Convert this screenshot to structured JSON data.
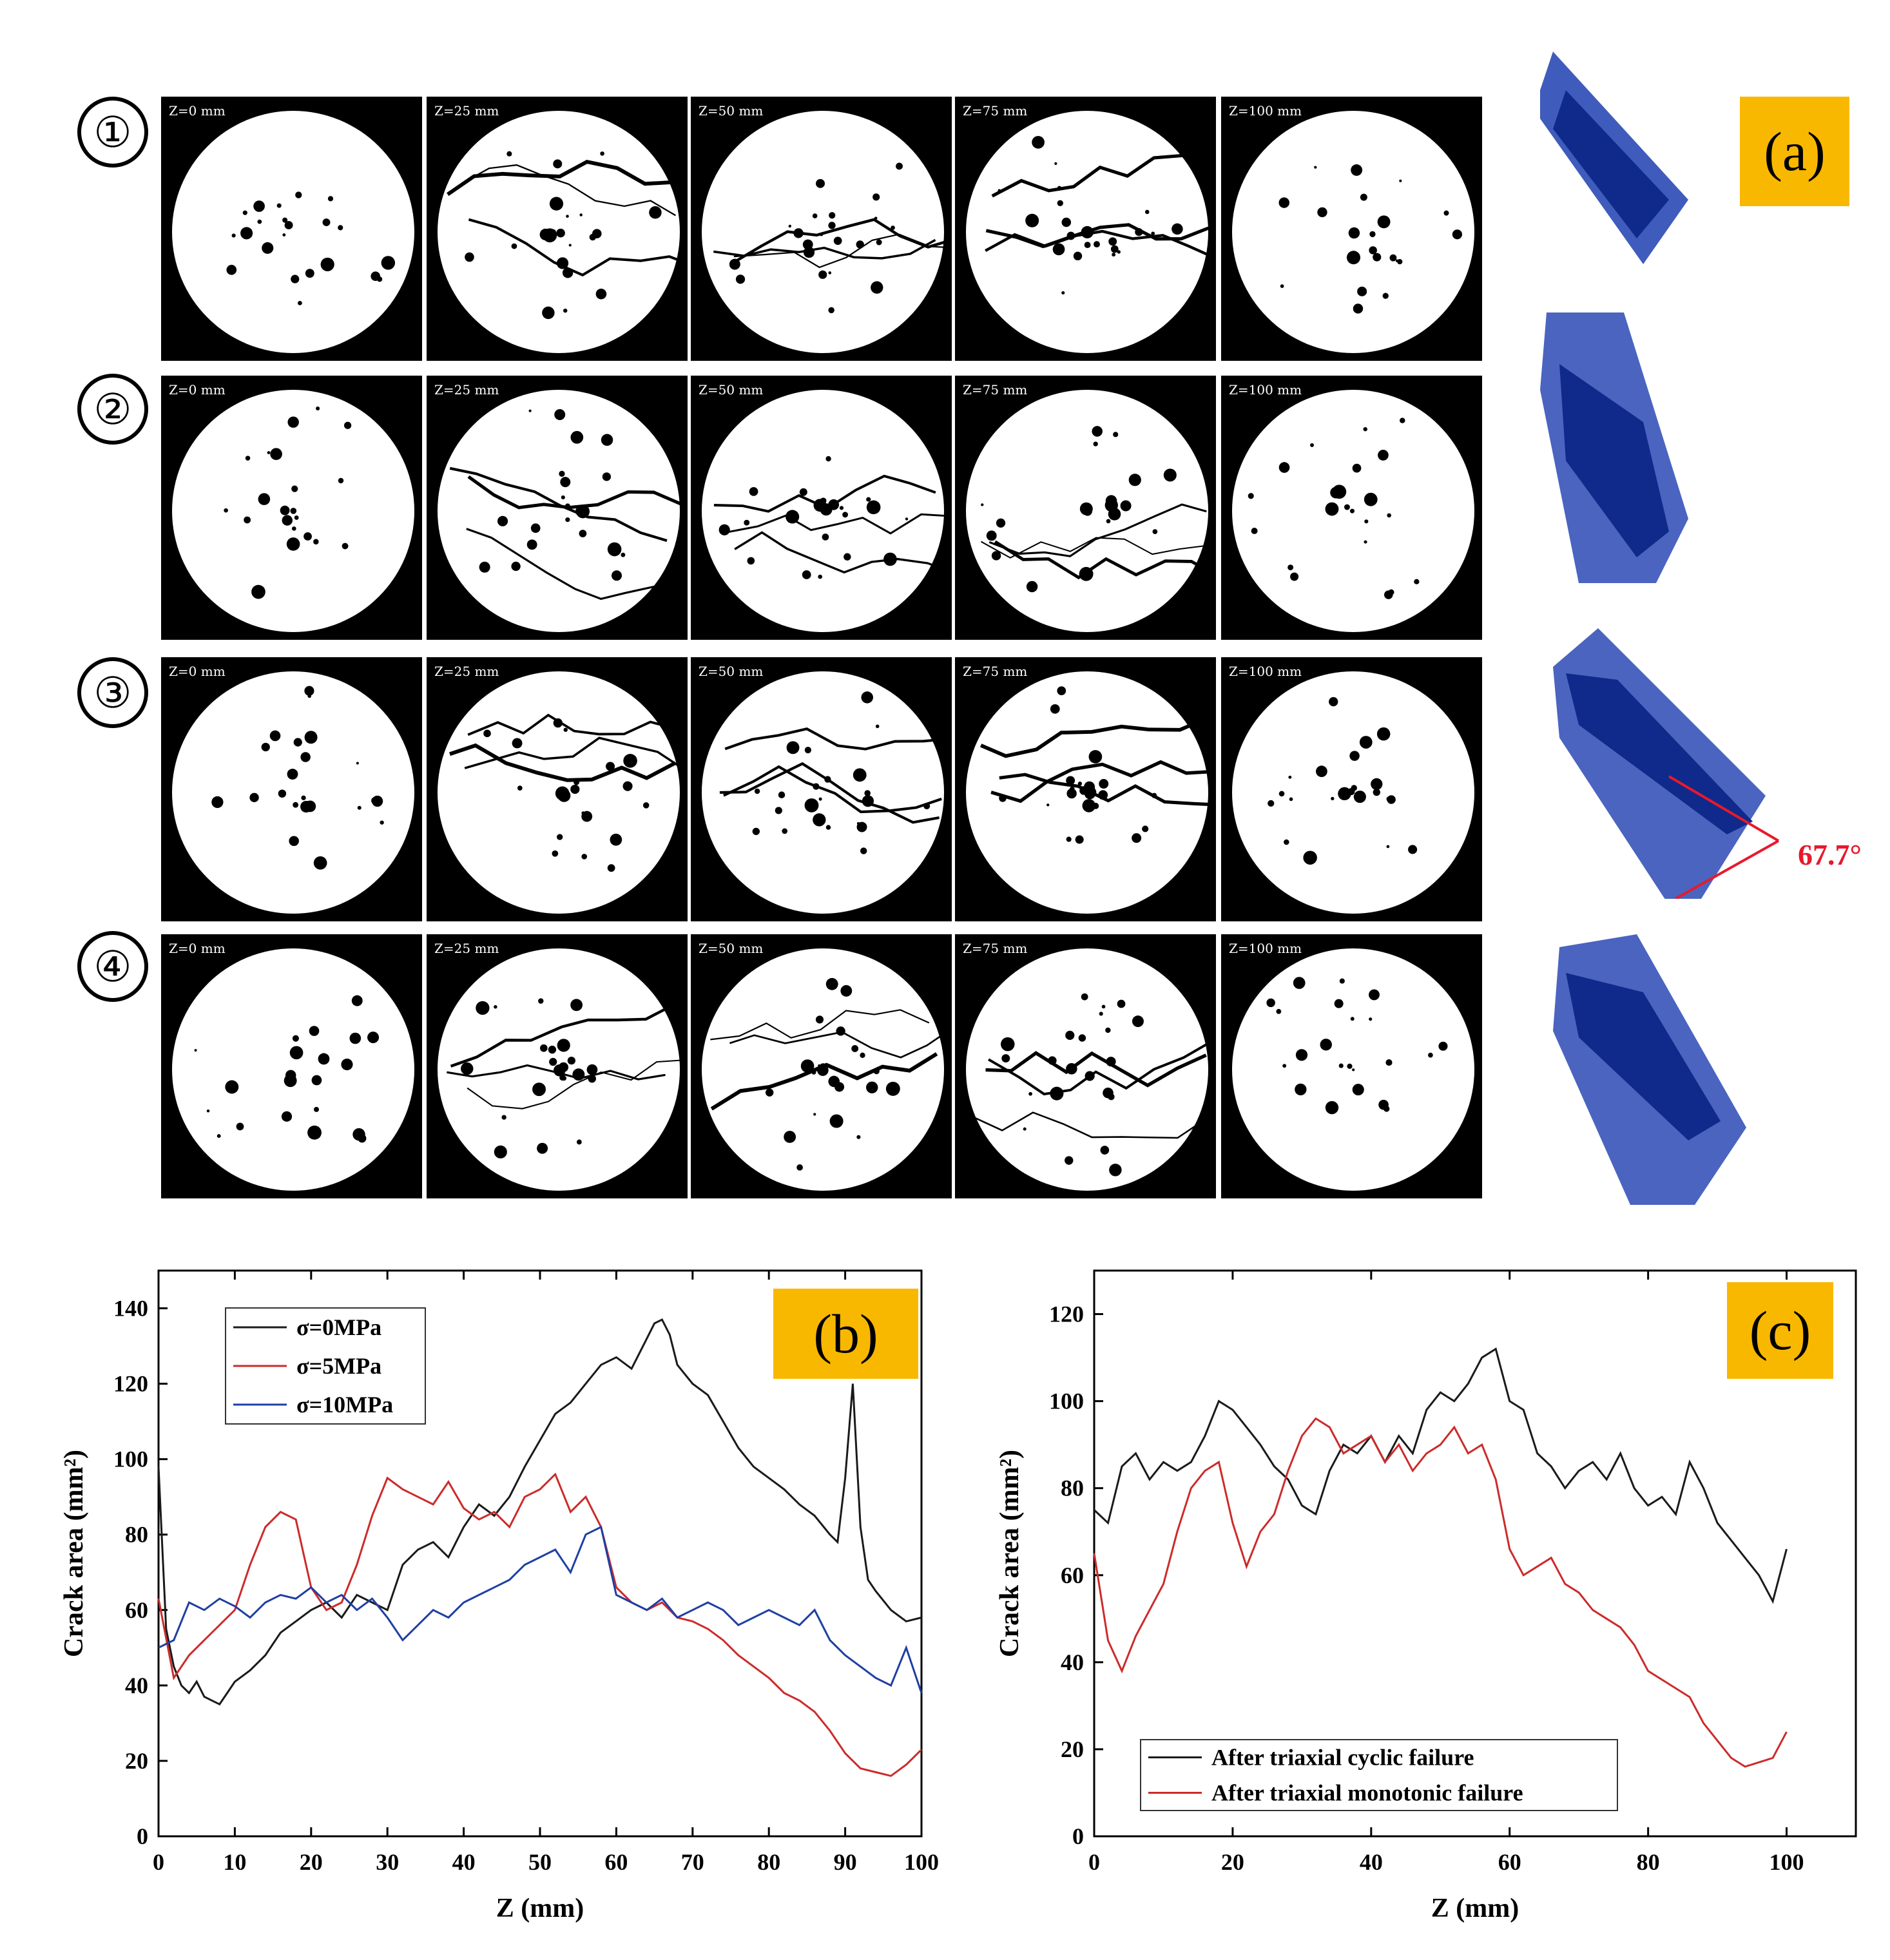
{
  "row_labels": [
    "①",
    "②",
    "③",
    "④"
  ],
  "slice_labels": [
    "Z=0 mm",
    "Z=25 mm",
    "Z=50 mm",
    "Z=75 mm",
    "Z=100 mm"
  ],
  "panels": {
    "a": "(a)",
    "b": "(b)",
    "c": "(c)"
  },
  "angle_annotation": "67.7°",
  "colors": {
    "tag_bg": "#f9b800",
    "model_blue": "#1e3ea8",
    "angle_red": "#e8192c"
  },
  "chart_data": [
    {
      "type": "line",
      "panel": "(b)",
      "xlabel": "Z (mm)",
      "ylabel": "Crack area (mm²)",
      "xlim": [
        0,
        100
      ],
      "ylim": [
        0,
        150
      ],
      "xticks": [
        0,
        10,
        20,
        30,
        40,
        50,
        60,
        70,
        80,
        90,
        100
      ],
      "yticks": [
        0,
        20,
        40,
        60,
        80,
        100,
        120,
        140
      ],
      "legend_position": "top-left",
      "series": [
        {
          "name": "σ=0MPa",
          "color": "#1a1a1a",
          "x": [
            0,
            1,
            2,
            3,
            4,
            5,
            6,
            7,
            8,
            9,
            10,
            12,
            14,
            16,
            18,
            20,
            22,
            24,
            26,
            28,
            30,
            32,
            34,
            36,
            38,
            40,
            42,
            44,
            46,
            48,
            50,
            52,
            54,
            56,
            58,
            60,
            62,
            64,
            65,
            66,
            67,
            68,
            70,
            72,
            74,
            76,
            78,
            80,
            82,
            84,
            86,
            88,
            89,
            90,
            91,
            92,
            93,
            94,
            96,
            98,
            100
          ],
          "y": [
            98,
            55,
            45,
            40,
            38,
            41,
            37,
            36,
            35,
            38,
            41,
            44,
            48,
            54,
            57,
            60,
            62,
            58,
            64,
            62,
            60,
            72,
            76,
            78,
            74,
            82,
            88,
            85,
            90,
            98,
            105,
            112,
            115,
            120,
            125,
            127,
            124,
            132,
            136,
            137,
            133,
            125,
            120,
            117,
            110,
            103,
            98,
            95,
            92,
            88,
            85,
            80,
            78,
            95,
            120,
            82,
            68,
            65,
            60,
            57,
            58
          ]
        },
        {
          "name": "σ=5MPa",
          "color": "#cc2b2b",
          "x": [
            0,
            2,
            4,
            6,
            8,
            10,
            12,
            14,
            16,
            18,
            20,
            22,
            24,
            26,
            28,
            30,
            32,
            34,
            36,
            38,
            40,
            42,
            44,
            46,
            48,
            50,
            52,
            54,
            56,
            58,
            60,
            62,
            64,
            66,
            68,
            70,
            72,
            74,
            76,
            78,
            80,
            82,
            84,
            86,
            88,
            90,
            92,
            94,
            96,
            98,
            100
          ],
          "y": [
            63,
            42,
            48,
            52,
            56,
            60,
            72,
            82,
            86,
            84,
            66,
            60,
            62,
            72,
            85,
            95,
            92,
            90,
            88,
            94,
            87,
            84,
            86,
            82,
            90,
            92,
            96,
            86,
            90,
            82,
            66,
            62,
            60,
            62,
            58,
            57,
            55,
            52,
            48,
            45,
            42,
            38,
            36,
            33,
            28,
            22,
            18,
            17,
            16,
            19,
            23
          ]
        },
        {
          "name": "σ=10MPa",
          "color": "#1f3fa3",
          "x": [
            0,
            2,
            4,
            6,
            8,
            10,
            12,
            14,
            16,
            18,
            20,
            22,
            24,
            26,
            28,
            30,
            32,
            34,
            36,
            38,
            40,
            42,
            44,
            46,
            48,
            50,
            52,
            54,
            56,
            58,
            60,
            62,
            64,
            66,
            68,
            70,
            72,
            74,
            76,
            78,
            80,
            82,
            84,
            86,
            88,
            90,
            92,
            94,
            96,
            98,
            100
          ],
          "y": [
            50,
            52,
            62,
            60,
            63,
            61,
            58,
            62,
            64,
            63,
            66,
            62,
            64,
            60,
            63,
            58,
            52,
            56,
            60,
            58,
            62,
            64,
            66,
            68,
            72,
            74,
            76,
            70,
            80,
            82,
            64,
            62,
            60,
            63,
            58,
            60,
            62,
            60,
            56,
            58,
            60,
            58,
            56,
            60,
            52,
            48,
            45,
            42,
            40,
            50,
            38
          ]
        }
      ]
    },
    {
      "type": "line",
      "panel": "(c)",
      "xlabel": "Z (mm)",
      "ylabel": "Crack area (mm²)",
      "xlim": [
        0,
        110
      ],
      "ylim": [
        0,
        130
      ],
      "xticks": [
        0,
        20,
        40,
        60,
        80,
        100
      ],
      "yticks": [
        0,
        20,
        40,
        60,
        80,
        100,
        120
      ],
      "legend_position": "bottom-left",
      "series": [
        {
          "name": "After triaxial cyclic failure",
          "color": "#1a1a1a",
          "x": [
            0,
            2,
            4,
            6,
            8,
            10,
            12,
            14,
            16,
            18,
            20,
            22,
            24,
            26,
            28,
            30,
            32,
            34,
            36,
            38,
            40,
            42,
            44,
            46,
            48,
            50,
            52,
            54,
            56,
            58,
            60,
            62,
            64,
            66,
            68,
            70,
            72,
            74,
            76,
            78,
            80,
            82,
            84,
            86,
            88,
            90,
            92,
            94,
            96,
            98,
            100
          ],
          "y": [
            75,
            72,
            85,
            88,
            82,
            86,
            84,
            86,
            92,
            100,
            98,
            94,
            90,
            85,
            82,
            76,
            74,
            84,
            90,
            88,
            92,
            86,
            92,
            88,
            98,
            102,
            100,
            104,
            110,
            112,
            100,
            98,
            88,
            85,
            80,
            84,
            86,
            82,
            88,
            80,
            76,
            78,
            74,
            86,
            80,
            72,
            68,
            64,
            60,
            54,
            66
          ]
        },
        {
          "name": "After triaxial monotonic failure",
          "color": "#cc2b2b",
          "x": [
            0,
            2,
            4,
            6,
            8,
            10,
            12,
            14,
            16,
            18,
            20,
            22,
            24,
            26,
            28,
            30,
            32,
            34,
            36,
            38,
            40,
            42,
            44,
            46,
            48,
            50,
            52,
            54,
            56,
            58,
            60,
            62,
            64,
            66,
            68,
            70,
            72,
            74,
            76,
            78,
            80,
            82,
            84,
            86,
            88,
            90,
            92,
            94,
            96,
            98,
            100
          ],
          "y": [
            65,
            45,
            38,
            46,
            52,
            58,
            70,
            80,
            84,
            86,
            72,
            62,
            70,
            74,
            84,
            92,
            96,
            94,
            88,
            90,
            92,
            86,
            90,
            84,
            88,
            90,
            94,
            88,
            90,
            82,
            66,
            60,
            62,
            64,
            58,
            56,
            52,
            50,
            48,
            44,
            38,
            36,
            34,
            32,
            26,
            22,
            18,
            16,
            17,
            18,
            24
          ]
        }
      ]
    }
  ]
}
